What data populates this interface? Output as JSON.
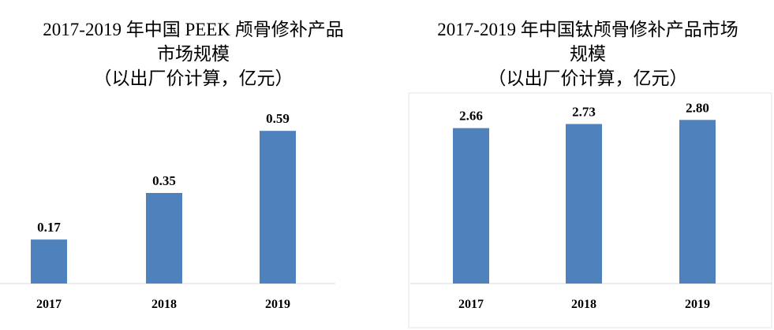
{
  "chart_data": [
    {
      "type": "bar",
      "title": [
        "2017-2019 年中国 PEEK 颅骨修补产品",
        "市场规模"
      ],
      "subtitle": "（以出厂价计算，亿元）",
      "categories": [
        "2017",
        "2018",
        "2019"
      ],
      "values": [
        0.17,
        0.35,
        0.59
      ],
      "color": "#4f81bd",
      "ylim": [
        0,
        0.7
      ]
    },
    {
      "type": "bar",
      "title": [
        "2017-2019 年中国钛颅骨修补产品市场",
        "规模"
      ],
      "subtitle": "（以出厂价计算，亿元）",
      "categories": [
        "2017",
        "2018",
        "2019"
      ],
      "values": [
        2.66,
        2.73,
        2.8
      ],
      "value_labels": [
        "2.66",
        "2.73",
        "2.80"
      ],
      "color": "#4f81bd",
      "ylim": [
        0,
        3.1
      ]
    }
  ]
}
